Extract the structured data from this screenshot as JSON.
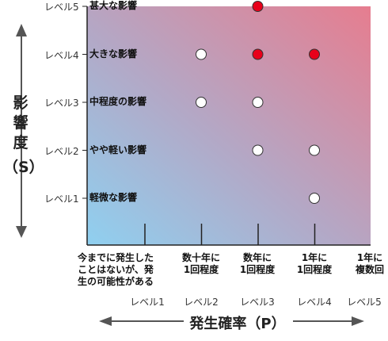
{
  "chart_data": {
    "type": "scatter",
    "title": "",
    "ylabel": "影響度（S）",
    "ylabel_chars": [
      "影",
      "響",
      "度",
      "（S）"
    ],
    "xlabel": "発生確率（P）",
    "gradient": {
      "low": "#8fd0f0",
      "mid": "#b3a8c6",
      "high": "#e67d8f"
    },
    "y_levels": [
      {
        "level": 5,
        "label": "レベル5",
        "desc": "甚大な影響"
      },
      {
        "level": 4,
        "label": "レベル4",
        "desc": "大きな影響"
      },
      {
        "level": 3,
        "label": "レベル3",
        "desc": "中程度の影響"
      },
      {
        "level": 2,
        "label": "レベル2",
        "desc": "やや軽い影響"
      },
      {
        "level": 1,
        "label": "レベル1",
        "desc": "軽微な影響"
      }
    ],
    "x_levels": [
      {
        "level": 1,
        "label": "レベル1",
        "desc_lines": [
          "今までに発生した",
          "ことはないが、発",
          "生の可能性がある"
        ]
      },
      {
        "level": 2,
        "label": "レベル2",
        "desc_lines": [
          "数十年に",
          "1回程度"
        ]
      },
      {
        "level": 3,
        "label": "レベル3",
        "desc_lines": [
          "数年に",
          "1回程度"
        ]
      },
      {
        "level": 4,
        "label": "レベル4",
        "desc_lines": [
          "1年に",
          "1回程度"
        ]
      },
      {
        "level": 5,
        "label": "レベル5",
        "desc_lines": [
          "1年に",
          "複数回"
        ]
      }
    ],
    "points": [
      {
        "x": 3,
        "y": 5,
        "status": "high"
      },
      {
        "x": 2,
        "y": 4,
        "status": "normal"
      },
      {
        "x": 3,
        "y": 4,
        "status": "high"
      },
      {
        "x": 4,
        "y": 4,
        "status": "high"
      },
      {
        "x": 2,
        "y": 3,
        "status": "normal"
      },
      {
        "x": 3,
        "y": 3,
        "status": "normal"
      },
      {
        "x": 3,
        "y": 2,
        "status": "normal"
      },
      {
        "x": 4,
        "y": 2,
        "status": "normal"
      },
      {
        "x": 4,
        "y": 1,
        "status": "normal"
      }
    ],
    "colors": {
      "high": "#e8001a",
      "normal": "#ffffff",
      "axis": "#222222",
      "arrow": "#555555"
    }
  }
}
